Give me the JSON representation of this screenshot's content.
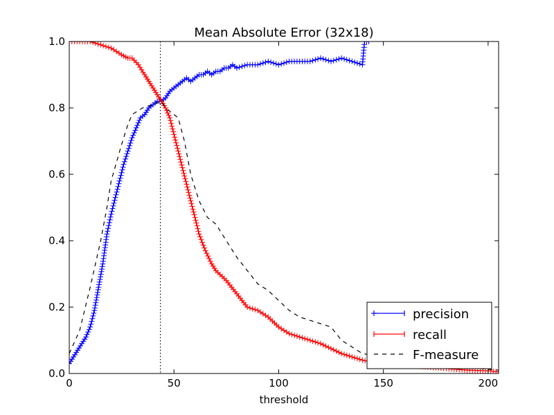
{
  "chart_data": {
    "type": "line",
    "title": "Mean Absolute Error (32x18)",
    "xlabel": "threshold",
    "ylabel": "",
    "xlim": [
      0,
      205
    ],
    "ylim": [
      0,
      1.0
    ],
    "x_ticks": [
      0,
      50,
      100,
      150,
      200
    ],
    "y_ticks": [
      0.0,
      0.2,
      0.4,
      0.6,
      0.8,
      1.0
    ],
    "x_tick_labels": [
      "0",
      "50",
      "100",
      "150",
      "200"
    ],
    "y_tick_labels": [
      "0.0",
      "0.2",
      "0.4",
      "0.6",
      "0.8",
      "1.0"
    ],
    "vertical_line_x": 43.5,
    "grid": false,
    "legend_position": "bottom-right",
    "colors": {
      "precision": "#0000ff",
      "recall": "#ff0000",
      "f_measure": "#000000"
    },
    "series": [
      {
        "name": "precision",
        "style": "solid-plus",
        "x": [
          0,
          2,
          4,
          6,
          8,
          10,
          12,
          14,
          16,
          18,
          20,
          22,
          24,
          26,
          28,
          30,
          32,
          34,
          36,
          38,
          40,
          42,
          44,
          46,
          48,
          50,
          52,
          54,
          56,
          58,
          60,
          62,
          64,
          66,
          68,
          70,
          72,
          74,
          76,
          78,
          80,
          85,
          90,
          95,
          100,
          105,
          110,
          115,
          120,
          125,
          130,
          135,
          140,
          141,
          143
        ],
        "y": [
          0.03,
          0.05,
          0.07,
          0.09,
          0.11,
          0.14,
          0.19,
          0.26,
          0.33,
          0.42,
          0.48,
          0.53,
          0.58,
          0.63,
          0.67,
          0.71,
          0.74,
          0.77,
          0.78,
          0.8,
          0.81,
          0.82,
          0.82,
          0.83,
          0.85,
          0.86,
          0.87,
          0.88,
          0.89,
          0.88,
          0.89,
          0.9,
          0.9,
          0.91,
          0.9,
          0.91,
          0.91,
          0.92,
          0.92,
          0.93,
          0.92,
          0.93,
          0.93,
          0.94,
          0.93,
          0.94,
          0.94,
          0.94,
          0.95,
          0.94,
          0.95,
          0.94,
          0.93,
          1.0,
          1.0
        ]
      },
      {
        "name": "recall",
        "style": "solid-plus",
        "x": [
          0,
          5,
          10,
          15,
          20,
          25,
          28,
          30,
          33,
          36,
          38,
          40,
          42,
          44,
          46,
          48,
          50,
          52,
          54,
          56,
          58,
          60,
          62,
          65,
          68,
          70,
          75,
          80,
          85,
          90,
          95,
          100,
          105,
          110,
          115,
          120,
          130,
          140,
          150,
          160,
          170,
          180,
          190,
          200,
          205
        ],
        "y": [
          1.0,
          1.0,
          1.0,
          0.99,
          0.98,
          0.96,
          0.95,
          0.95,
          0.93,
          0.9,
          0.88,
          0.86,
          0.84,
          0.82,
          0.8,
          0.77,
          0.72,
          0.67,
          0.62,
          0.57,
          0.52,
          0.47,
          0.42,
          0.37,
          0.33,
          0.31,
          0.28,
          0.24,
          0.2,
          0.19,
          0.17,
          0.14,
          0.12,
          0.11,
          0.1,
          0.09,
          0.06,
          0.04,
          0.03,
          0.025,
          0.02,
          0.015,
          0.01,
          0.008,
          0.005
        ]
      },
      {
        "name": "F-measure",
        "style": "dashed",
        "x": [
          0,
          5,
          10,
          15,
          18,
          20,
          25,
          28,
          30,
          35,
          40,
          44,
          46,
          48,
          52,
          55,
          58,
          62,
          66,
          70,
          75,
          80,
          85,
          90,
          95,
          100,
          105,
          110,
          115,
          120,
          125,
          130,
          135,
          140,
          150,
          160,
          170,
          180,
          190,
          200,
          205
        ],
        "y": [
          0.06,
          0.13,
          0.26,
          0.4,
          0.5,
          0.58,
          0.69,
          0.75,
          0.78,
          0.8,
          0.81,
          0.82,
          0.8,
          0.79,
          0.77,
          0.7,
          0.6,
          0.52,
          0.47,
          0.45,
          0.4,
          0.35,
          0.31,
          0.27,
          0.25,
          0.22,
          0.19,
          0.17,
          0.16,
          0.15,
          0.14,
          0.1,
          0.08,
          0.06,
          0.05,
          0.04,
          0.03,
          0.025,
          0.02,
          0.012,
          0.01
        ]
      }
    ],
    "legend": {
      "entries": [
        "precision",
        "recall",
        "F-measure"
      ]
    }
  }
}
